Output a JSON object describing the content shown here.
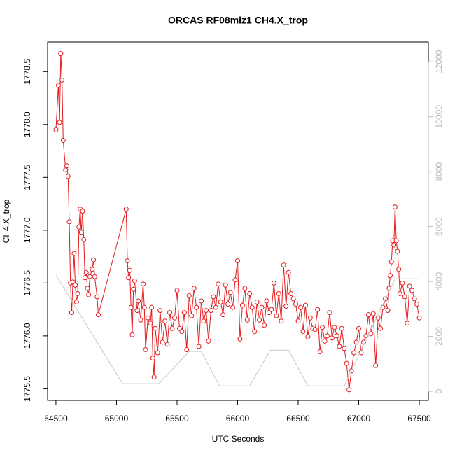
{
  "chart_data": {
    "type": "line",
    "title": "ORCAS RF08miz1 CH4.X_trop",
    "x_label": "UTC Seconds",
    "y_label": "CH4.X_trop",
    "xlim": [
      64431,
      67575
    ],
    "xticks": [
      64500,
      65000,
      65500,
      66000,
      66500,
      67000,
      67500
    ],
    "ylim": [
      1775.39,
      1778.78
    ],
    "yticks": [
      1775.5,
      {
        "value": 1776,
        "label": "1776.0"
      },
      1776.5,
      {
        "value": 1777,
        "label": "1777.0"
      },
      1777.5,
      {
        "value": 1778,
        "label": "1778.0"
      },
      1778.5
    ],
    "y2lim": [
      -330,
      12720
    ],
    "y2ticks": [
      0,
      2000,
      4000,
      6000,
      8000,
      10000,
      12000
    ],
    "series": [
      {
        "color": "#e41a1c",
        "markers": true,
        "x": [
          64500,
          64520,
          64530,
          64540,
          64550,
          64560,
          64580,
          64590,
          64600,
          64610,
          64620,
          64630,
          64640,
          64650,
          64660,
          64670,
          64680,
          64690,
          64700,
          64710,
          64720,
          64730,
          64740,
          64750,
          64760,
          64770,
          64780,
          64800,
          64810,
          64820,
          64840,
          64850,
          65080,
          65090,
          65100,
          65110,
          65120,
          65130,
          65140,
          65150,
          65170,
          65180,
          65200,
          65220,
          65230,
          65240,
          65260,
          65280,
          65290,
          65300,
          65310,
          65320,
          65340,
          65360,
          65380,
          65400,
          65420,
          65440,
          65460,
          65480,
          65500,
          65520,
          65540,
          65560,
          65580,
          65600,
          65620,
          65640,
          65660,
          65680,
          65700,
          65720,
          65740,
          65760,
          65780,
          65800,
          65820,
          65840,
          65860,
          65880,
          65900,
          65920,
          65940,
          65960,
          65980,
          66000,
          66020,
          66040,
          66060,
          66080,
          66100,
          66120,
          66140,
          66160,
          66180,
          66200,
          66220,
          66240,
          66260,
          66280,
          66300,
          66320,
          66340,
          66360,
          66380,
          66400,
          66420,
          66440,
          66460,
          66480,
          66500,
          66520,
          66540,
          66560,
          66580,
          66600,
          66620,
          66640,
          66660,
          66680,
          66700,
          66720,
          66740,
          66760,
          66780,
          66800,
          66820,
          66840,
          66860,
          66880,
          66900,
          66920,
          66940,
          66960,
          66980,
          67000,
          67020,
          67040,
          67060,
          67080,
          67100,
          67120,
          67140,
          67160,
          67180,
          67200,
          67220,
          67240,
          67250,
          67260,
          67270,
          67280,
          67290,
          67300,
          67310,
          67320,
          67330,
          67340,
          67360,
          67380,
          67400,
          67420,
          67440,
          67460,
          67480,
          67500
        ],
        "values": [
          1777.95,
          1778.37,
          1778.02,
          1778.67,
          1778.42,
          1777.85,
          1777.57,
          1777.61,
          1777.51,
          1777.08,
          1776.5,
          1776.22,
          1776.51,
          1776.78,
          1776.48,
          1776.32,
          1776.4,
          1777.03,
          1777.2,
          1776.98,
          1777.18,
          1776.91,
          1776.55,
          1776.6,
          1776.45,
          1776.39,
          1776.56,
          1776.63,
          1776.72,
          1776.56,
          1776.37,
          1776.2,
          1777.2,
          1776.71,
          1776.55,
          1776.62,
          1776.27,
          1776.01,
          1776.44,
          1776.52,
          1776.24,
          1776.33,
          1776.15,
          1776.49,
          1776.27,
          1775.87,
          1776.17,
          1776.12,
          1776.27,
          1775.79,
          1775.61,
          1776.07,
          1775.84,
          1776.24,
          1775.94,
          1776.14,
          1775.92,
          1776.22,
          1776.07,
          1776.17,
          1776.43,
          1776.07,
          1776.04,
          1776.22,
          1775.87,
          1776.38,
          1776.19,
          1776.45,
          1776.27,
          1775.9,
          1776.33,
          1776.14,
          1776.24,
          1775.95,
          1776.24,
          1776.37,
          1776.27,
          1776.49,
          1776.32,
          1776.2,
          1776.48,
          1776.3,
          1776.41,
          1776.27,
          1776.53,
          1776.71,
          1775.97,
          1776.29,
          1776.45,
          1776.15,
          1776.4,
          1776.27,
          1776.04,
          1776.32,
          1776.15,
          1776.27,
          1776.1,
          1776.33,
          1776.22,
          1776.25,
          1776.5,
          1776.19,
          1776.4,
          1776.14,
          1776.67,
          1776.28,
          1776.6,
          1776.4,
          1776.35,
          1776.3,
          1776.14,
          1776.27,
          1776.04,
          1776.29,
          1775.99,
          1776.17,
          1776.07,
          1776.06,
          1776.25,
          1775.85,
          1776.08,
          1775.95,
          1776.0,
          1776.22,
          1775.98,
          1776.08,
          1776.0,
          1775.9,
          1776.07,
          1775.88,
          1775.74,
          1775.49,
          1775.67,
          1775.84,
          1775.94,
          1776.07,
          1775.84,
          1775.94,
          1776.0,
          1776.2,
          1776.02,
          1776.21,
          1775.72,
          1776.17,
          1776.07,
          1776.27,
          1776.35,
          1776.24,
          1776.45,
          1776.57,
          1776.7,
          1776.9,
          1776.86,
          1777.22,
          1776.9,
          1776.8,
          1776.63,
          1776.4,
          1776.5,
          1776.37,
          1776.12,
          1776.47,
          1776.43,
          1776.35,
          1776.3,
          1776.17
        ]
      },
      {
        "color": "#c8c8c8",
        "axis": "y2",
        "markers": false,
        "x": [
          64500,
          65050,
          65350,
          65600,
          65700,
          65850,
          66100,
          66270,
          66420,
          66580,
          66880,
          67300,
          67500
        ],
        "values": [
          4230,
          280,
          280,
          1450,
          1450,
          200,
          200,
          1500,
          1500,
          200,
          200,
          4100,
          4100
        ]
      }
    ]
  }
}
